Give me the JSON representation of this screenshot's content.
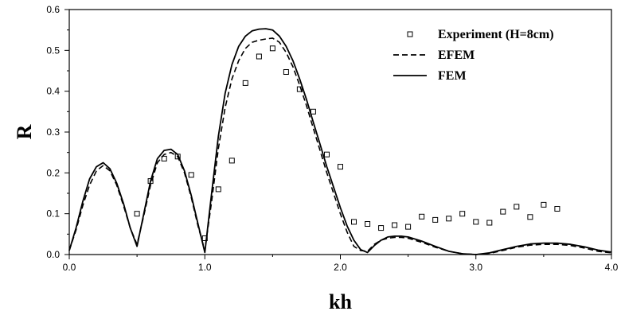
{
  "chart_data": {
    "type": "line",
    "title": "",
    "xlabel": "kh",
    "ylabel": "R",
    "xlim": [
      0.0,
      4.0
    ],
    "ylim": [
      0.0,
      0.6
    ],
    "x_ticks": [
      "0.0",
      "1.0",
      "2.0",
      "3.0",
      "4.0"
    ],
    "y_ticks": [
      "0.0",
      "0.1",
      "0.2",
      "0.3",
      "0.4",
      "0.5",
      "0.6"
    ],
    "grid": false,
    "legend_position": "top-right",
    "series": [
      {
        "name": "Experiment (H=8cm)",
        "kind": "scatter",
        "marker": "open-square",
        "x": [
          0.5,
          0.6,
          0.7,
          0.8,
          0.9,
          1.0,
          1.1,
          1.2,
          1.3,
          1.4,
          1.5,
          1.6,
          1.7,
          1.8,
          1.9,
          2.0,
          2.1,
          2.2,
          2.3,
          2.4,
          2.5,
          2.6,
          2.7,
          2.8,
          2.9,
          3.0,
          3.1,
          3.2,
          3.3,
          3.4,
          3.5,
          3.6
        ],
        "y": [
          0.1,
          0.18,
          0.235,
          0.24,
          0.195,
          0.04,
          0.16,
          0.23,
          0.42,
          0.485,
          0.505,
          0.447,
          0.405,
          0.35,
          0.245,
          0.215,
          0.08,
          0.075,
          0.065,
          0.072,
          0.068,
          0.093,
          0.085,
          0.088,
          0.1,
          0.08,
          0.078,
          0.105,
          0.117,
          0.092,
          0.122,
          0.112
        ]
      },
      {
        "name": "EFEM",
        "kind": "line",
        "style": "dashed",
        "x": [
          0.0,
          0.05,
          0.1,
          0.15,
          0.2,
          0.25,
          0.3,
          0.35,
          0.4,
          0.45,
          0.5,
          0.55,
          0.6,
          0.65,
          0.7,
          0.75,
          0.8,
          0.85,
          0.9,
          0.95,
          1.0,
          1.05,
          1.1,
          1.15,
          1.2,
          1.25,
          1.3,
          1.35,
          1.4,
          1.45,
          1.5,
          1.55,
          1.6,
          1.65,
          1.7,
          1.75,
          1.8,
          1.85,
          1.9,
          1.95,
          2.0,
          2.05,
          2.1,
          2.15,
          2.2,
          2.25,
          2.3,
          2.35,
          2.4,
          2.45,
          2.5,
          2.6,
          2.7,
          2.8,
          2.9,
          3.0,
          3.1,
          3.2,
          3.3,
          3.4,
          3.5,
          3.6,
          3.7,
          3.8,
          3.9,
          4.0
        ],
        "y": [
          0.01,
          0.06,
          0.12,
          0.17,
          0.205,
          0.218,
          0.205,
          0.17,
          0.12,
          0.065,
          0.025,
          0.095,
          0.17,
          0.225,
          0.245,
          0.25,
          0.24,
          0.2,
          0.14,
          0.07,
          0.01,
          0.13,
          0.26,
          0.36,
          0.43,
          0.475,
          0.505,
          0.52,
          0.525,
          0.528,
          0.53,
          0.52,
          0.495,
          0.46,
          0.415,
          0.365,
          0.31,
          0.255,
          0.2,
          0.15,
          0.1,
          0.055,
          0.02,
          0.01,
          0.008,
          0.025,
          0.035,
          0.04,
          0.042,
          0.042,
          0.04,
          0.03,
          0.018,
          0.008,
          0.002,
          0.0,
          0.003,
          0.01,
          0.018,
          0.023,
          0.025,
          0.025,
          0.022,
          0.016,
          0.008,
          0.004
        ]
      },
      {
        "name": "FEM",
        "kind": "line",
        "style": "solid",
        "x": [
          0.0,
          0.05,
          0.1,
          0.15,
          0.2,
          0.25,
          0.3,
          0.35,
          0.4,
          0.45,
          0.5,
          0.55,
          0.6,
          0.65,
          0.7,
          0.75,
          0.8,
          0.85,
          0.9,
          0.95,
          1.0,
          1.05,
          1.1,
          1.15,
          1.2,
          1.25,
          1.3,
          1.35,
          1.4,
          1.45,
          1.5,
          1.55,
          1.6,
          1.65,
          1.7,
          1.75,
          1.8,
          1.85,
          1.9,
          1.95,
          2.0,
          2.05,
          2.1,
          2.15,
          2.2,
          2.25,
          2.3,
          2.35,
          2.4,
          2.45,
          2.5,
          2.6,
          2.7,
          2.8,
          2.9,
          3.0,
          3.1,
          3.2,
          3.3,
          3.4,
          3.5,
          3.6,
          3.7,
          3.8,
          3.9,
          4.0
        ],
        "y": [
          0.01,
          0.065,
          0.13,
          0.185,
          0.215,
          0.225,
          0.21,
          0.175,
          0.125,
          0.065,
          0.02,
          0.1,
          0.18,
          0.235,
          0.255,
          0.258,
          0.245,
          0.205,
          0.145,
          0.075,
          0.005,
          0.15,
          0.29,
          0.395,
          0.465,
          0.51,
          0.535,
          0.548,
          0.552,
          0.553,
          0.55,
          0.535,
          0.51,
          0.475,
          0.43,
          0.38,
          0.325,
          0.27,
          0.215,
          0.165,
          0.115,
          0.07,
          0.035,
          0.012,
          0.005,
          0.022,
          0.035,
          0.043,
          0.045,
          0.045,
          0.043,
          0.033,
          0.02,
          0.008,
          0.002,
          0.0,
          0.004,
          0.012,
          0.02,
          0.026,
          0.028,
          0.028,
          0.025,
          0.019,
          0.011,
          0.006
        ]
      }
    ]
  }
}
